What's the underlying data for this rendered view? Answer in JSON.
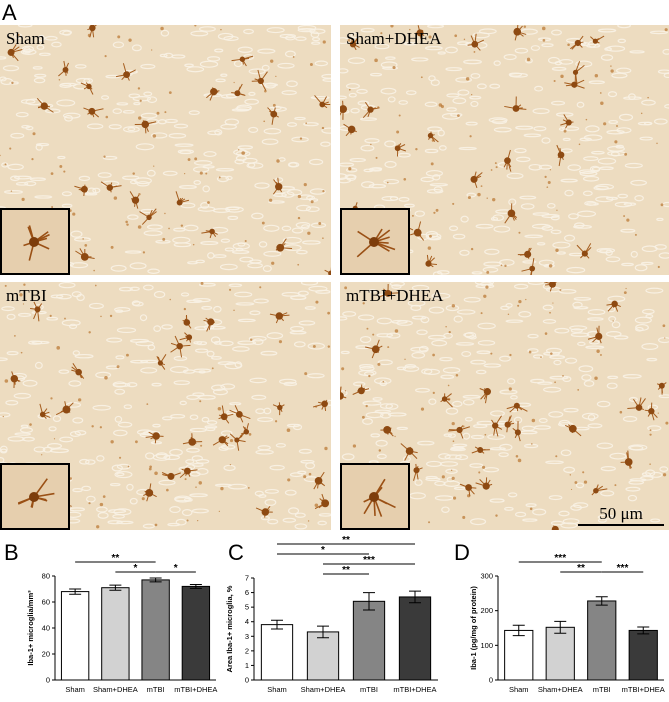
{
  "panel_labels": [
    "A",
    "B",
    "C",
    "D"
  ],
  "images": [
    {
      "label": "Sham"
    },
    {
      "label": "Sham+DHEA"
    },
    {
      "label": "mTBI"
    },
    {
      "label": "mTBI+DHEA"
    }
  ],
  "scale_bar": "50 μm",
  "chart_data": [
    {
      "type": "bar",
      "ylabel": "Iba-1+ microglia/mm³",
      "categories": [
        "Sham",
        "Sham+DHEA",
        "mTBI",
        "mTBI+DHEA"
      ],
      "colors": [
        "#ffffff",
        "#d2d2d2",
        "#858585",
        "#3a3a3a"
      ],
      "values": [
        68,
        71,
        77,
        72
      ],
      "errors": [
        2,
        2,
        1.5,
        1.5
      ],
      "ylim": [
        0,
        80
      ],
      "yticks": [
        0,
        20,
        40,
        60,
        80
      ],
      "significance": [
        {
          "pair": [
            0,
            2
          ],
          "label": "**"
        },
        {
          "pair": [
            1,
            2
          ],
          "label": "*"
        },
        {
          "pair": [
            2,
            3
          ],
          "label": "*"
        }
      ]
    },
    {
      "type": "bar",
      "ylabel": "Area Iba-1+ microglia, %",
      "categories": [
        "Sham",
        "Sham+DHEA",
        "mTBI",
        "mTBI+DHEA"
      ],
      "colors": [
        "#ffffff",
        "#d2d2d2",
        "#858585",
        "#3a3a3a"
      ],
      "values": [
        3.8,
        3.3,
        5.4,
        5.7
      ],
      "errors": [
        0.3,
        0.4,
        0.6,
        0.4
      ],
      "ylim": [
        0,
        7
      ],
      "yticks": [
        0,
        1,
        2,
        3,
        4,
        5,
        6,
        7
      ],
      "significance": [
        {
          "pair": [
            0,
            3
          ],
          "label": "**"
        },
        {
          "pair": [
            0,
            2
          ],
          "label": "*"
        },
        {
          "pair": [
            1,
            3
          ],
          "label": "***"
        },
        {
          "pair": [
            1,
            2
          ],
          "label": "**"
        }
      ]
    },
    {
      "type": "bar",
      "ylabel": "Iba-1 (pg/mg of protein)",
      "categories": [
        "Sham",
        "Sham+DHEA",
        "mTBI",
        "mTBI+DHEA"
      ],
      "colors": [
        "#ffffff",
        "#d2d2d2",
        "#858585",
        "#3a3a3a"
      ],
      "values": [
        143,
        152,
        228,
        143
      ],
      "errors": [
        15,
        17,
        12,
        10
      ],
      "ylim": [
        0,
        300
      ],
      "yticks": [
        0,
        100,
        200,
        300
      ],
      "significance": [
        {
          "pair": [
            0,
            2
          ],
          "label": "***"
        },
        {
          "pair": [
            1,
            2
          ],
          "label": "**"
        },
        {
          "pair": [
            2,
            3
          ],
          "label": "***"
        }
      ]
    }
  ]
}
